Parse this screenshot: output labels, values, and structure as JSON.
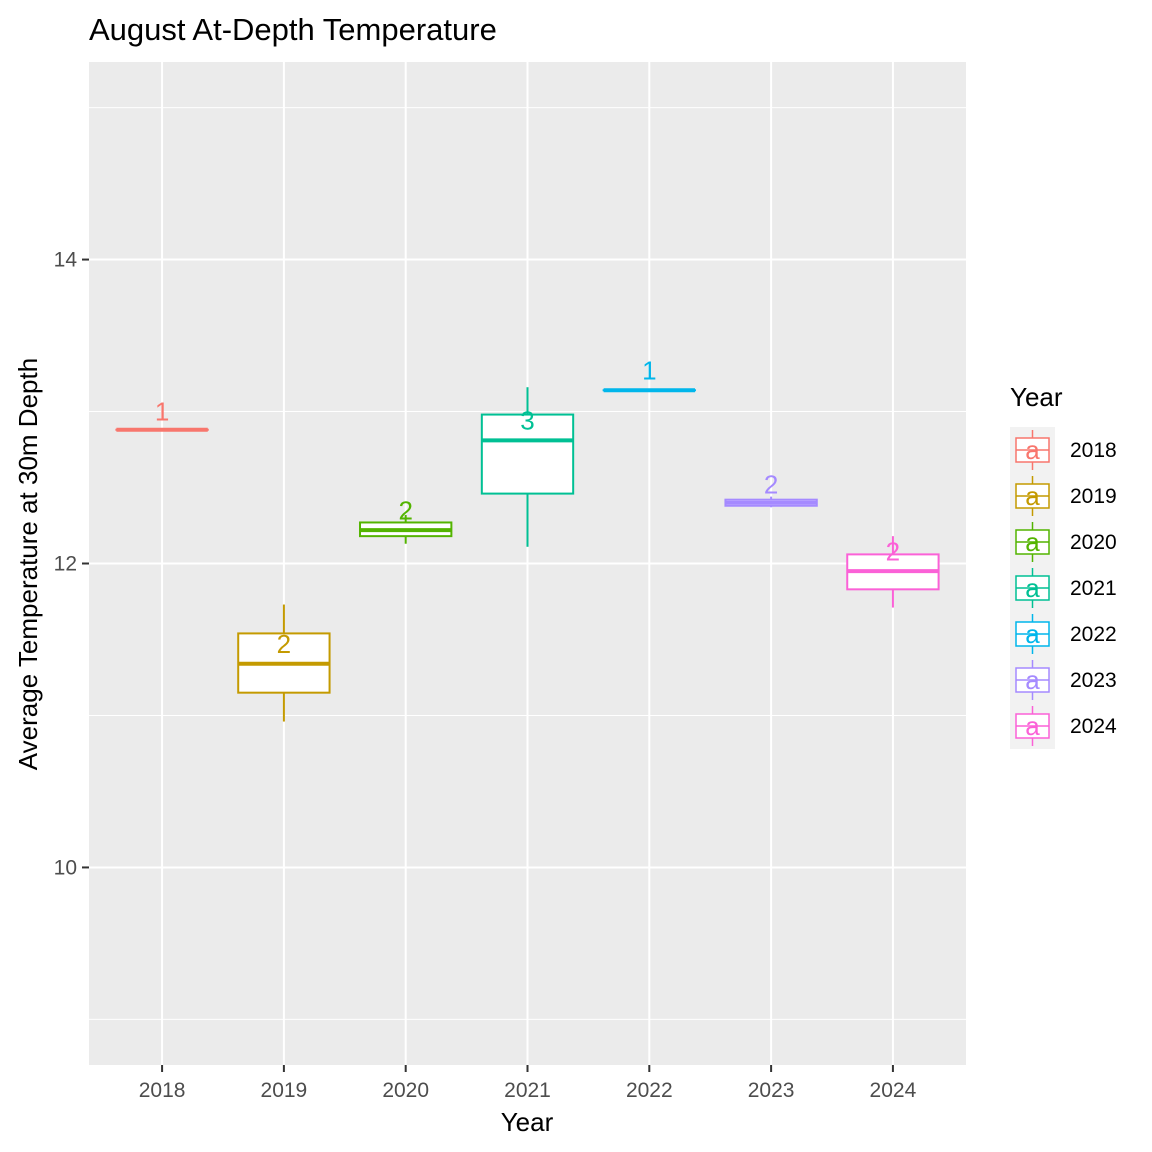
{
  "chart_data": {
    "type": "box",
    "title": "August At-Depth Temperature",
    "xlabel": "Year",
    "ylabel": "Average Temperature at 30m Depth",
    "ylim": [
      8.7,
      15.3
    ],
    "yticks": [
      10,
      12,
      14
    ],
    "ytick_labels": [
      "10",
      "12",
      "14"
    ],
    "categories": [
      "2018",
      "2019",
      "2020",
      "2021",
      "2022",
      "2023",
      "2024"
    ],
    "series": [
      {
        "name": "2018",
        "color": "#F8766D",
        "min": 12.88,
        "q1": 12.88,
        "median": 12.88,
        "q3": 12.88,
        "max": 12.88,
        "n_label": "1",
        "n_label_y": 13.0
      },
      {
        "name": "2019",
        "color": "#C49A00",
        "min": 10.96,
        "q1": 11.15,
        "median": 11.34,
        "q3": 11.54,
        "max": 11.73,
        "n_label": "2",
        "n_label_y": 11.47
      },
      {
        "name": "2020",
        "color": "#53B400",
        "min": 12.13,
        "q1": 12.18,
        "median": 12.22,
        "q3": 12.27,
        "max": 12.32,
        "n_label": "2",
        "n_label_y": 12.35
      },
      {
        "name": "2021",
        "color": "#00C094",
        "min": 12.11,
        "q1": 12.46,
        "median": 12.81,
        "q3": 12.98,
        "max": 13.16,
        "n_label": "3",
        "n_label_y": 12.94
      },
      {
        "name": "2022",
        "color": "#00B6EB",
        "min": 13.14,
        "q1": 13.14,
        "median": 13.14,
        "q3": 13.14,
        "max": 13.14,
        "n_label": "1",
        "n_label_y": 13.27
      },
      {
        "name": "2023",
        "color": "#A58AFF",
        "min": 12.37,
        "q1": 12.38,
        "median": 12.4,
        "q3": 12.42,
        "max": 12.44,
        "n_label": "2",
        "n_label_y": 12.52
      },
      {
        "name": "2024",
        "color": "#FB61D7",
        "min": 11.71,
        "q1": 11.83,
        "median": 11.95,
        "q3": 12.06,
        "max": 12.18,
        "n_label": "2",
        "n_label_y": 12.08
      }
    ],
    "legend": {
      "title": "Year",
      "position": "right",
      "key_glyph": "a"
    },
    "grid": true,
    "panel_background": "#EBEBEB",
    "gridline_color": "#FFFFFF"
  }
}
